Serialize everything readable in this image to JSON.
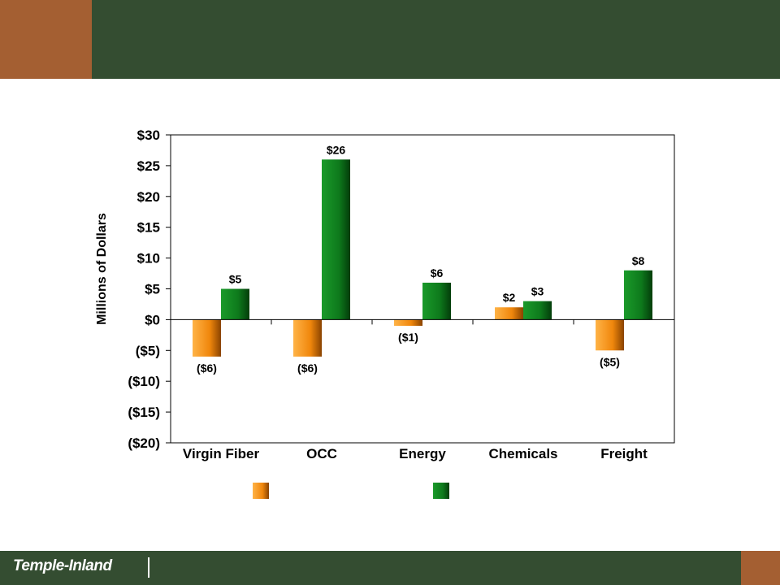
{
  "brand": {
    "logo_text": "Temple-Inland"
  },
  "colors": {
    "header_green": "#344d31",
    "accent_brown": "#a45f32",
    "series_orange": "#f28c0f",
    "series_green": "#0e7a1c"
  },
  "chart_data": {
    "type": "bar",
    "categories": [
      "Virgin Fiber",
      "OCC",
      "Energy",
      "Chemicals",
      "Freight"
    ],
    "series": [
      {
        "values": [
          -6,
          -6,
          -1,
          2,
          -5
        ],
        "labels": [
          "($6)",
          "($6)",
          "($1)",
          "$2",
          "($5)"
        ],
        "color": "orange"
      },
      {
        "values": [
          5,
          26,
          6,
          3,
          8
        ],
        "labels": [
          "$5",
          "$26",
          "$6",
          "$3",
          "$8"
        ],
        "color": "green"
      }
    ],
    "ylabel": "Millions of Dollars",
    "ylim": [
      -20,
      30
    ],
    "yticks": [
      30,
      25,
      20,
      15,
      10,
      5,
      0,
      -5,
      -10,
      -15,
      -20
    ],
    "ytick_labels": [
      "$30",
      "$25",
      "$20",
      "$15",
      "$10",
      "$5",
      "$0",
      "($5)",
      "($10)",
      "($15)",
      "($20)"
    ],
    "grid": false,
    "legend": {
      "placement": "bottom",
      "entries_text_visible": false
    }
  }
}
